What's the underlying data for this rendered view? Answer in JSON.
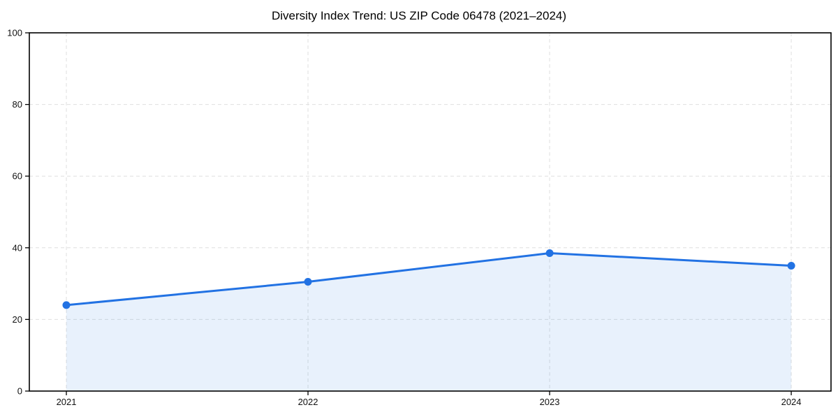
{
  "chart_data": {
    "type": "area",
    "title": "Diversity Index Trend: US ZIP Code 06478 (2021–2024)",
    "categories": [
      "2021",
      "2022",
      "2023",
      "2024"
    ],
    "values": [
      24,
      30.5,
      38.5,
      35
    ],
    "xlabel": "",
    "ylabel": "",
    "ylim": [
      0,
      100
    ],
    "yticks": [
      0,
      20,
      40,
      60,
      80,
      100
    ],
    "grid": true,
    "grid_style": "dashed",
    "legend_position": "none",
    "marker": "circle",
    "colors": {
      "line": "#2272e3",
      "marker": "#2272e3",
      "fill": "rgba(34,114,227,0.10)",
      "grid": "#dfdfdf",
      "axis": "#000000",
      "tick_label": "#111111",
      "title": "#000000",
      "background": "#ffffff"
    }
  }
}
